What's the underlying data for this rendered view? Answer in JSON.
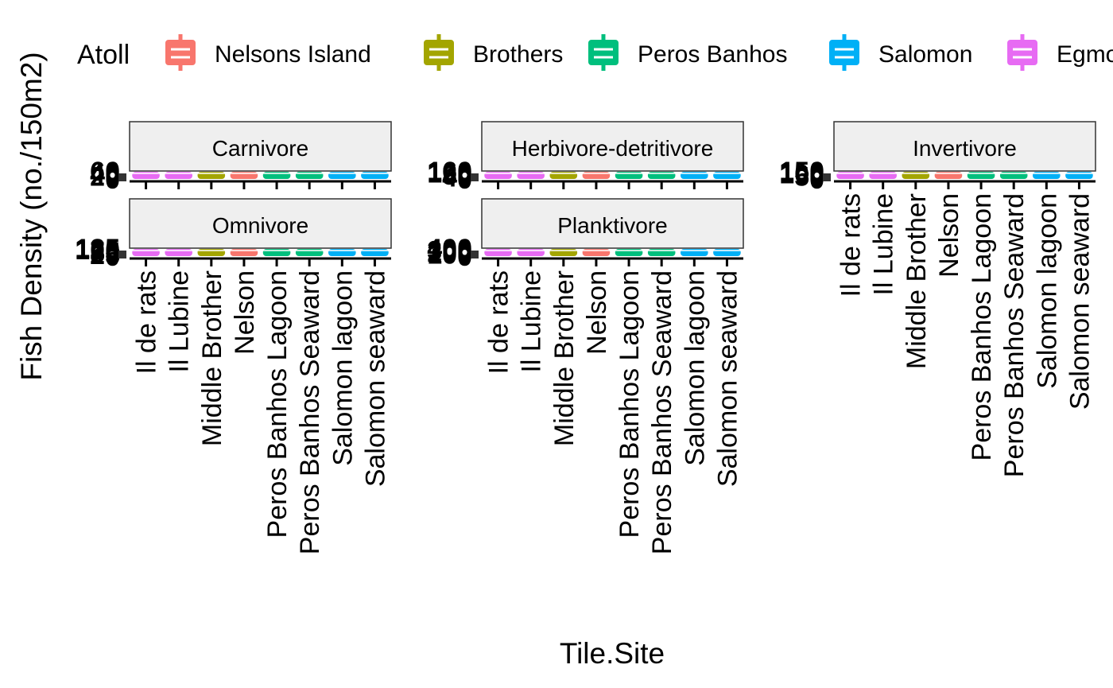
{
  "chart_data": {
    "type": "box",
    "ylabel": "Fish Density (no./150m2)",
    "xlabel": "Tile.Site",
    "legend": {
      "title": "Atoll",
      "position": "top",
      "entries": [
        {
          "name": "Nelsons Island",
          "color": "#F8766D"
        },
        {
          "name": "Brothers",
          "color": "#A3A500"
        },
        {
          "name": "Peros Banhos",
          "color": "#00BF7D"
        },
        {
          "name": "Salomon",
          "color": "#00B0F6"
        },
        {
          "name": "Egmo",
          "color": "#E76BF3"
        }
      ]
    },
    "categories": [
      "Il de rats",
      "Il Lubine",
      "Middle Brother",
      "Nelson",
      "Peros Banhos Lagoon",
      "Peros Banhos Seaward",
      "Salomon lagoon",
      "Salomon seaward"
    ],
    "category_colors": [
      "#E76BF3",
      "#E76BF3",
      "#A3A500",
      "#F8766D",
      "#00BF7D",
      "#00BF7D",
      "#00B0F6",
      "#00B0F6"
    ],
    "facets": [
      {
        "name": "Carnivore",
        "yticks": [
          "0",
          "20",
          "40",
          "60"
        ]
      },
      {
        "name": "Herbivore-detritivore",
        "yticks": [
          "0",
          "40",
          "80",
          "120",
          "160"
        ]
      },
      {
        "name": "Invertivore",
        "yticks": [
          "0",
          "50",
          "100",
          "150"
        ]
      },
      {
        "name": "Omnivore",
        "yticks": [
          "0",
          "25",
          "50",
          "75",
          "100",
          "125"
        ]
      },
      {
        "name": "Planktivore",
        "yticks": [
          "0",
          "100",
          "200",
          "300",
          "400"
        ]
      }
    ]
  }
}
